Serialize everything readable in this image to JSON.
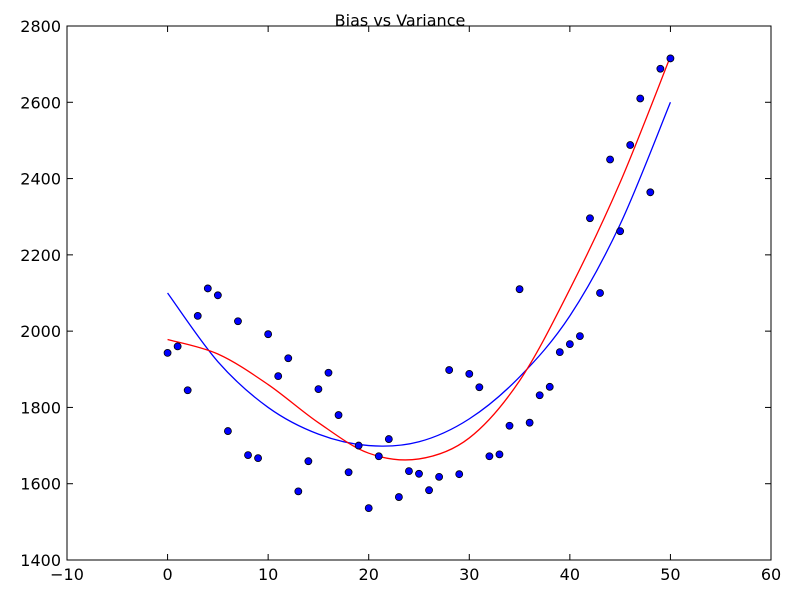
{
  "chart_data": {
    "type": "scatter",
    "title": "Bias vs Variance",
    "xlabel": "",
    "ylabel": "",
    "xlim": [
      -10,
      60
    ],
    "ylim": [
      1400,
      2800
    ],
    "x_ticks": [
      -10,
      0,
      10,
      20,
      30,
      40,
      50,
      60
    ],
    "y_ticks": [
      1400,
      1600,
      1800,
      2000,
      2200,
      2400,
      2600,
      2800
    ],
    "x_tick_labels": [
      "−10",
      "0",
      "10",
      "20",
      "30",
      "40",
      "50",
      "60"
    ],
    "y_tick_labels": [
      "1400",
      "1600",
      "1800",
      "2000",
      "2200",
      "2400",
      "2600",
      "2800"
    ],
    "grid": false,
    "legend": "none",
    "colors": {
      "points": "#0000ff",
      "line_blue": "#0000ff",
      "line_red": "#ff0000"
    },
    "points": {
      "x": [
        0,
        1,
        2,
        3,
        4,
        5,
        6,
        7,
        8,
        9,
        10,
        11,
        12,
        13,
        14,
        15,
        16,
        17,
        18,
        19,
        20,
        21,
        22,
        23,
        24,
        25,
        26,
        27,
        28,
        29,
        30,
        31,
        32,
        33,
        34,
        35,
        36,
        37,
        38,
        39,
        40,
        41,
        42,
        43,
        44,
        45,
        46,
        47,
        48,
        49,
        50
      ],
      "y": [
        1943,
        1960,
        1845,
        2040,
        2112,
        2094,
        1738,
        2026,
        1675,
        1667,
        1992,
        1882,
        1929,
        1580,
        1659,
        1848,
        1891,
        1780,
        1630,
        1700,
        1536,
        1672,
        1717,
        1565,
        1633,
        1626,
        1583,
        1618,
        1898,
        1625,
        1888,
        1853,
        1672,
        1677,
        1752,
        2110,
        1760,
        1832,
        1854,
        1945,
        1966,
        1987,
        2296,
        2100,
        2450,
        2262,
        2488,
        2610,
        2364,
        2688,
        2715
      ]
    },
    "series": [
      {
        "x": [
          0,
          5,
          10,
          15,
          20,
          25,
          30,
          35,
          40,
          45,
          50
        ],
        "y": [
          2100,
          1920,
          1800,
          1730,
          1700,
          1710,
          1770,
          1880,
          2040,
          2280,
          2600
        ]
      },
      {
        "x": [
          0,
          5,
          10,
          15,
          20,
          25,
          30,
          35,
          40,
          45,
          50
        ],
        "y": [
          1978,
          1940,
          1860,
          1760,
          1680,
          1665,
          1720,
          1870,
          2110,
          2390,
          2720
        ]
      }
    ]
  }
}
